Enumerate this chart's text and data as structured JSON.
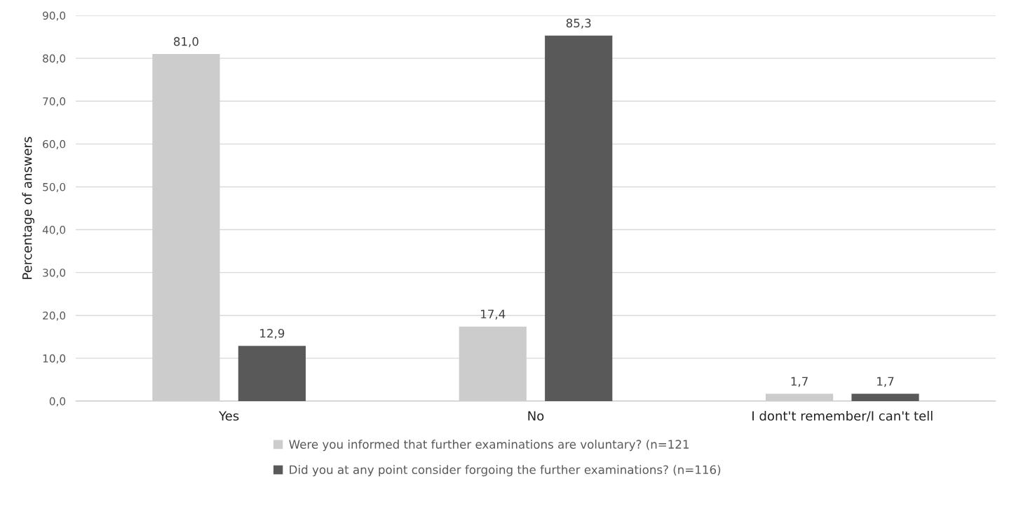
{
  "chart_data": {
    "type": "bar",
    "ylabel": "Percentage of answers",
    "categories": [
      "Yes",
      "No",
      "I dont't remember/I can't tell"
    ],
    "series": [
      {
        "name": "Were you informed that further examinations are voluntary? (n=121",
        "color": "#cccccc",
        "values": [
          81.0,
          17.4,
          1.7
        ],
        "value_labels": [
          "81,0",
          "17,4",
          "1,7"
        ]
      },
      {
        "name": "Did you at any point consider forgoing the further examinations? (n=116)",
        "color": "#595959",
        "values": [
          12.9,
          85.3,
          1.7
        ],
        "value_labels": [
          "12,9",
          "85,3",
          "1,7"
        ]
      }
    ],
    "ylim": [
      0,
      90
    ],
    "yticks": [
      {
        "value": 0,
        "label": "0,0"
      },
      {
        "value": 10,
        "label": "10,0"
      },
      {
        "value": 20,
        "label": "20,0"
      },
      {
        "value": 30,
        "label": "30,0"
      },
      {
        "value": 40,
        "label": "40,0"
      },
      {
        "value": 50,
        "label": "50,0"
      },
      {
        "value": 60,
        "label": "60,0"
      },
      {
        "value": 70,
        "label": "70,0"
      },
      {
        "value": 80,
        "label": "80,0"
      },
      {
        "value": 90,
        "label": "90,0"
      }
    ],
    "grid": "y",
    "legend": "bottom"
  }
}
